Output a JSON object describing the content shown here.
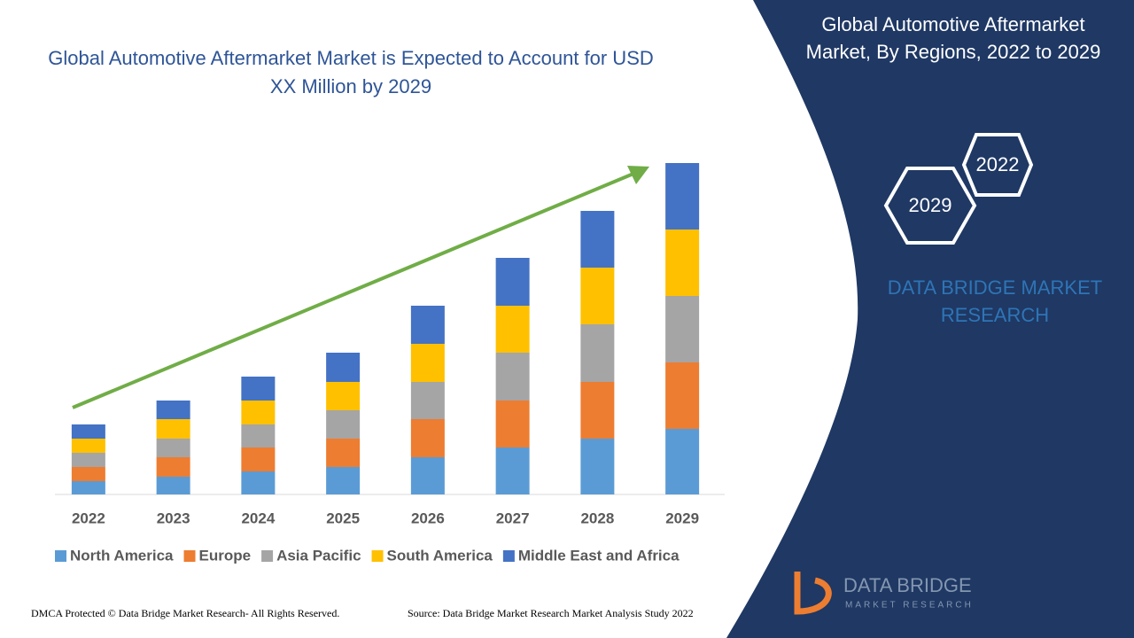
{
  "chart_data": {
    "type": "bar",
    "stacked": true,
    "title": "Global Automotive Aftermarket Market is Expected to Account for USD XX Million by 2029",
    "categories": [
      "2022",
      "2023",
      "2024",
      "2025",
      "2026",
      "2027",
      "2028",
      "2029"
    ],
    "series": [
      {
        "name": "North America",
        "color": "#5b9bd5",
        "values": [
          15,
          20,
          26,
          31,
          42,
          53,
          63,
          74
        ]
      },
      {
        "name": "Europe",
        "color": "#ed7d31",
        "values": [
          16,
          22,
          27,
          32,
          43,
          53,
          64,
          75
        ]
      },
      {
        "name": "Asia Pacific",
        "color": "#a5a5a5",
        "values": [
          16,
          21,
          26,
          32,
          42,
          54,
          65,
          75
        ]
      },
      {
        "name": "South America",
        "color": "#ffc000",
        "values": [
          16,
          22,
          27,
          32,
          43,
          53,
          64,
          75
        ]
      },
      {
        "name": "Middle East and Africa",
        "color": "#4472c4",
        "values": [
          16,
          21,
          27,
          33,
          43,
          54,
          64,
          75
        ]
      }
    ],
    "ylim": [
      0,
      400
    ]
  },
  "panel": {
    "title": "Global Automotive Aftermarket Market, By Regions, 2022 to 2029",
    "hex_start": "2022",
    "hex_end": "2029",
    "brand": "DATA BRIDGE MARKET RESEARCH"
  },
  "logo": {
    "name": "DATA BRIDGE",
    "sub": "MARKET RESEARCH"
  },
  "footer": {
    "left": "DMCA Protected © Data Bridge Market Research- All Rights Reserved.",
    "right": "Source: Data Bridge Market Research Market Analysis Study 2022"
  }
}
